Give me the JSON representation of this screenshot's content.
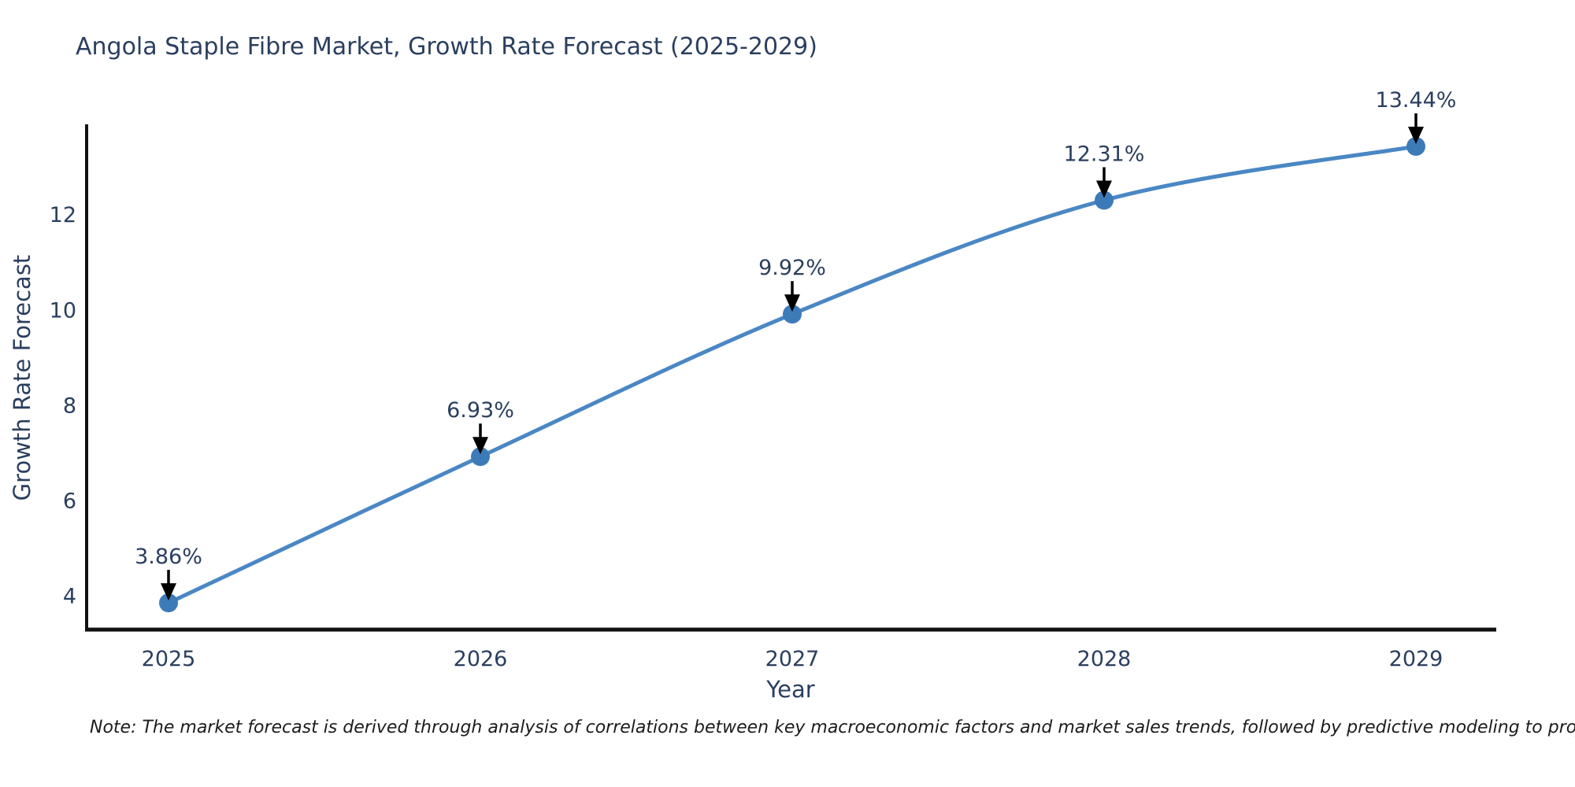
{
  "chart_data": {
    "type": "line",
    "title": "Angola Staple Fibre Market, Growth Rate Forecast (2025-2029)",
    "xlabel": "Year",
    "ylabel": "Growth Rate Forecast",
    "categories": [
      "2025",
      "2026",
      "2027",
      "2028",
      "2029"
    ],
    "series": [
      {
        "name": "Growth Rate Forecast",
        "values": [
          3.86,
          6.93,
          9.92,
          12.31,
          13.44
        ]
      }
    ],
    "data_labels": [
      "3.86%",
      "6.93%",
      "9.92%",
      "12.31%",
      "13.44%"
    ],
    "y_ticks": [
      4,
      6,
      8,
      10,
      12
    ],
    "ylim": [
      3.3,
      13.87
    ],
    "grid": false,
    "legend_position": "none",
    "line_shape": "spline",
    "note": "Note: The market forecast is derived through analysis of correlations between key macroeconomic factors and market sales trends, followed by predictive modeling to project future sales"
  },
  "colors": {
    "line": "#4a87c4",
    "marker": "#3d7bb8",
    "axis": "#111111",
    "text": "#2a3f5f",
    "annotation_arrow": "#000000",
    "note_text": "#1c1c1c",
    "background": "#ffffff"
  }
}
